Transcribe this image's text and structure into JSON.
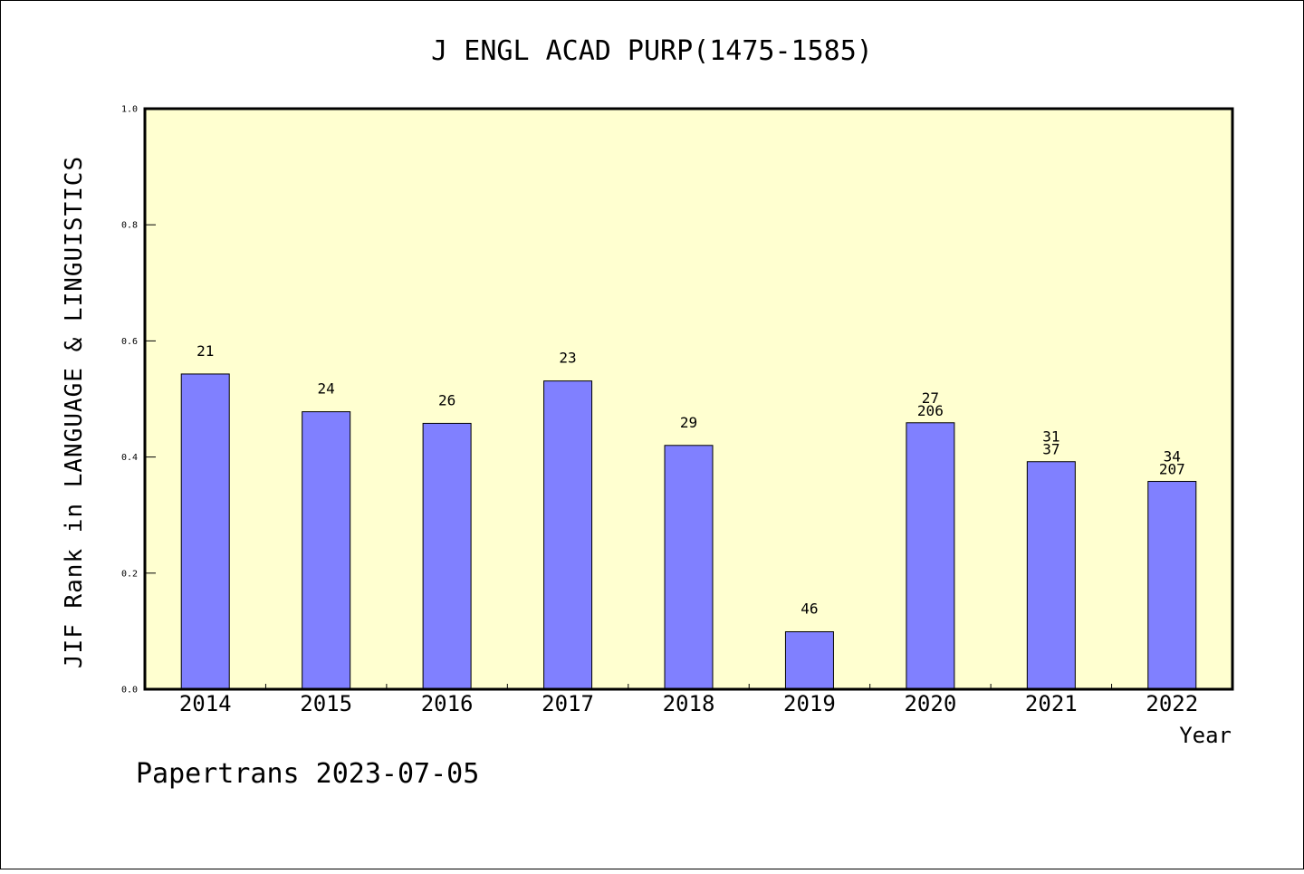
{
  "chart_data": {
    "type": "bar",
    "title": "J ENGL ACAD PURP(1475-1585)",
    "ylabel": "JIF Rank in LANGUAGE & LINGUISTICS",
    "xlabel": "Year",
    "ylim": [
      0,
      1
    ],
    "yticks": [
      "0.0",
      "0.2",
      "0.4",
      "0.6",
      "0.8",
      "1.0"
    ],
    "categories": [
      "2014",
      "2015",
      "2016",
      "2017",
      "2018",
      "2019",
      "2020",
      "2021",
      "2022"
    ],
    "values": [
      0.543,
      0.478,
      0.458,
      0.531,
      0.42,
      0.099,
      0.459,
      0.392,
      0.358
    ],
    "labels": [
      [
        "21"
      ],
      [
        "24"
      ],
      [
        "26"
      ],
      [
        "23"
      ],
      [
        "29"
      ],
      [
        "46"
      ],
      [
        "27",
        "206"
      ],
      [
        "31",
        "37"
      ],
      [
        "34",
        "207"
      ]
    ],
    "colors": {
      "bar": "#8080ff",
      "plot_background": "#ffffd0",
      "axis": "#000000"
    },
    "grid": false,
    "legend": "none"
  },
  "footer": "Papertrans 2023-07-05"
}
